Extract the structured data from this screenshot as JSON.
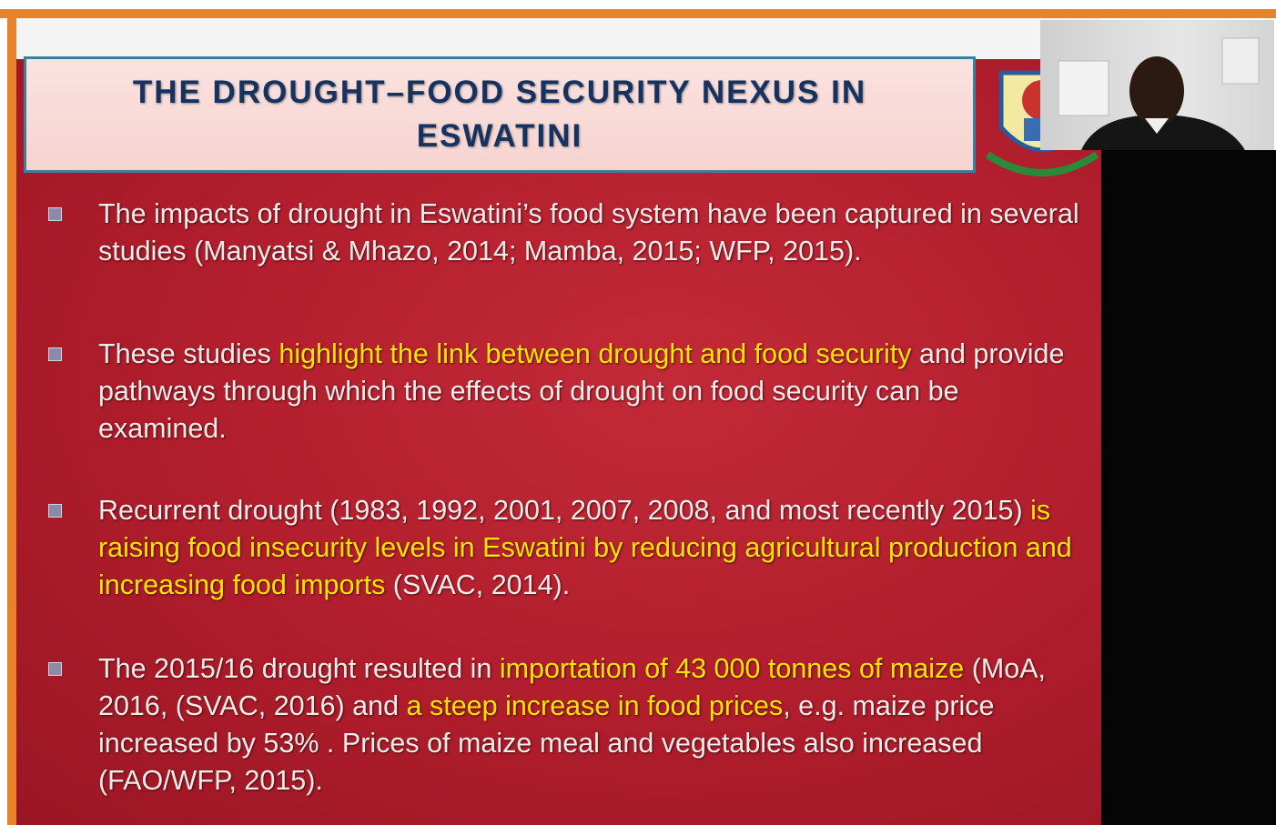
{
  "slide": {
    "title": "THE DROUGHT–FOOD SECURITY NEXUS IN ESWATINI",
    "highlight_color": "#ffe400",
    "bullets": [
      {
        "segments": [
          {
            "text": "The impacts of drought in Eswatini’s food system have been captured in  several studies (Manyatsi & Mhazo, 2014; Mamba, 2015; WFP, 2015).",
            "highlight": false
          }
        ]
      },
      {
        "segments": [
          {
            "text": "These studies ",
            "highlight": false
          },
          {
            "text": "highlight the link between drought and food security",
            "highlight": true
          },
          {
            "text": " and provide pathways through which the effects of drought on food security can be examined.",
            "highlight": false
          }
        ]
      },
      {
        "segments": [
          {
            "text": "Recurrent drought (1983, 1992, 2001, 2007, 2008, and most recently 2015) ",
            "highlight": false
          },
          {
            "text": "is raising food insecurity levels in Eswatini by reducing agricultural production and increasing food imports",
            "highlight": true
          },
          {
            "text": " (SVAC, 2014).",
            "highlight": false
          }
        ]
      },
      {
        "segments": [
          {
            "text": "The 2015/16 drought resulted in ",
            "highlight": false
          },
          {
            "text": "importation of 43 000 tonnes of maize",
            "highlight": true
          },
          {
            "text": " (MoA, 2016, (SVAC, 2016) and ",
            "highlight": false
          },
          {
            "text": "a steep increase in food prices",
            "highlight": true
          },
          {
            "text": ", e.g. maize price increased by 53% . Prices of maize meal and vegetables also increased (FAO/WFP, 2015).",
            "highlight": false
          }
        ]
      }
    ]
  }
}
